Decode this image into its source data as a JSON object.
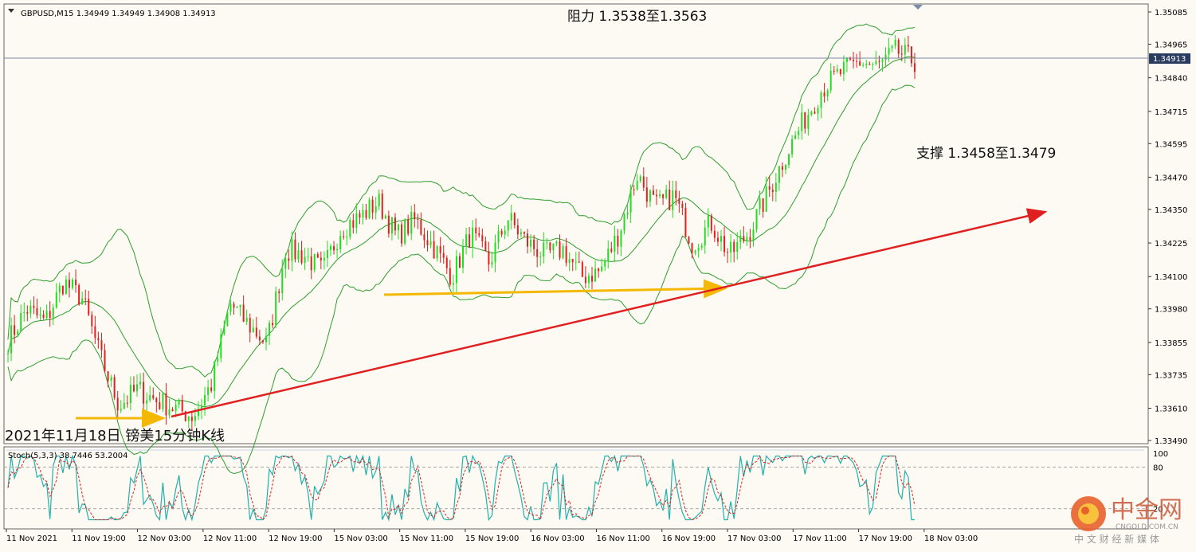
{
  "chart_data": {
    "type": "candlestick",
    "symbol_header": "GBPUSD,M15  1.34949 1.34949 1.34908 1.34913",
    "current_price_label": "1.34913",
    "current_price": 1.34913,
    "ylim": [
      1.3349,
      1.35085
    ],
    "y_ticks": [
      "1.35085",
      "1.34965",
      "1.34840",
      "1.34715",
      "1.34595",
      "1.34470",
      "1.34350",
      "1.34225",
      "1.34100",
      "1.33980",
      "1.33855",
      "1.33735",
      "1.33610",
      "1.33490"
    ],
    "x_ticks": [
      "11 Nov 2021",
      "11 Nov 19:00",
      "12 Nov 03:00",
      "12 Nov 11:00",
      "12 Nov 19:00",
      "15 Nov 03:00",
      "15 Nov 11:00",
      "15 Nov 19:00",
      "16 Nov 03:00",
      "16 Nov 11:00",
      "16 Nov 19:00",
      "17 Nov 03:00",
      "17 Nov 11:00",
      "17 Nov 19:00",
      "18 Nov 03:00"
    ],
    "annotations": {
      "resistance": "阻力 1.3538至1.3563",
      "support": "支撑 1.3458至1.3479",
      "caption": "2021年11月18日 镑美15分钟K线"
    },
    "close_path": [
      1.3386,
      1.3398,
      1.3393,
      1.3408,
      1.3402,
      1.338,
      1.3362,
      1.3368,
      1.3364,
      1.3361,
      1.3358,
      1.337,
      1.34,
      1.3392,
      1.3385,
      1.342,
      1.3418,
      1.3412,
      1.3428,
      1.3432,
      1.3438,
      1.3425,
      1.3431,
      1.3421,
      1.341,
      1.3426,
      1.3415,
      1.3432,
      1.3423,
      1.3418,
      1.342,
      1.341,
      1.3412,
      1.3426,
      1.3448,
      1.3436,
      1.344,
      1.3422,
      1.343,
      1.3418,
      1.3426,
      1.344,
      1.3455,
      1.3468,
      1.348,
      1.3486,
      1.349,
      1.3488,
      1.3494,
      1.349
    ],
    "indicator": {
      "label": "Stoch(5,3,3) 38.7446 53.2004",
      "main": 38.7446,
      "signal": 53.2004,
      "ylim": [
        0,
        100
      ],
      "levels": [
        "100",
        "80",
        "20"
      ]
    },
    "legend": "none",
    "grid": false
  },
  "colors": {
    "background": "#fdf9f3",
    "bull": "#22dd22",
    "bear": "#dd2222",
    "band": "#2e9e2e",
    "stoch_main": "#20b2aa",
    "stoch_signal": "#dd2222",
    "trendline": "#e02020",
    "support_arrow": "#f5b800"
  },
  "watermark": {
    "brand": "中金网",
    "domain": "CNGOLD.COM.CN",
    "tagline": "中 文 财 经 新 媒 体"
  }
}
